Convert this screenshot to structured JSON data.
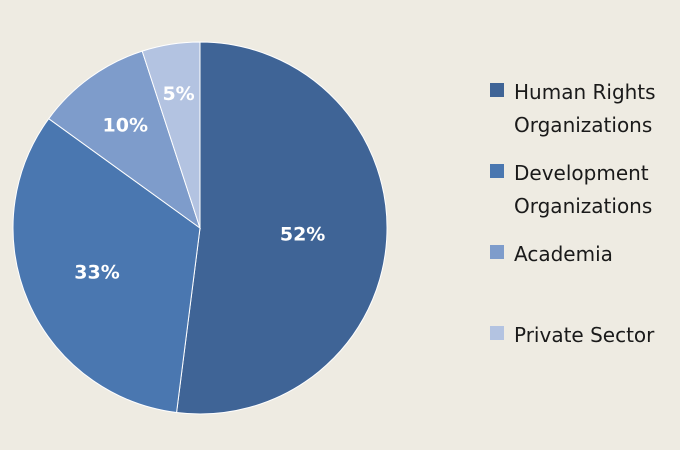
{
  "chart_data": {
    "type": "pie",
    "categories": [
      "Human Rights\nOrganizations",
      "Development\nOrganizations",
      "Academia",
      "Private Sector"
    ],
    "values": [
      52,
      33,
      10,
      5
    ],
    "labels": [
      "52%",
      "33%",
      "10%",
      "5%"
    ],
    "colors": [
      "#3f6496",
      "#4a77b0",
      "#7e9ccb",
      "#b3c3e1"
    ],
    "title": "",
    "legend_position": "right"
  }
}
